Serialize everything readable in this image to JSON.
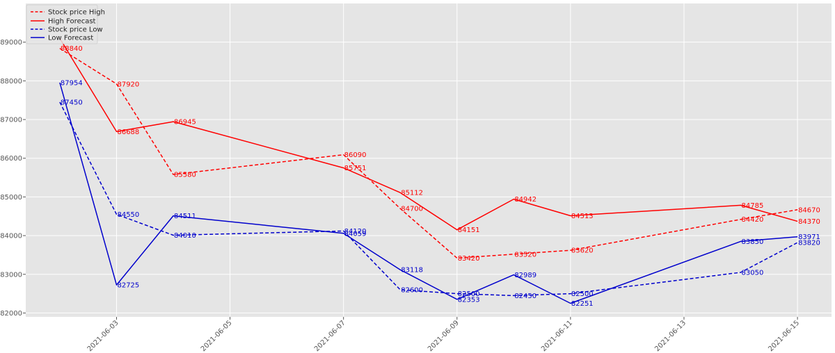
{
  "chart_data": {
    "type": "line",
    "title": "",
    "xlabel": "",
    "ylabel": "",
    "xlim": [
      "2021-06-01T09:36",
      "2021-06-15T14:24"
    ],
    "ylim": [
      81900,
      90000
    ],
    "grid": true,
    "legend_position": "top-left",
    "x_ticks": [
      "2021-06-03",
      "2021-06-05",
      "2021-06-07",
      "2021-06-09",
      "2021-06-11",
      "2021-06-13",
      "2021-06-15"
    ],
    "y_ticks": [
      82000,
      83000,
      84000,
      85000,
      86000,
      87000,
      88000,
      89000
    ],
    "y_tick_labels": [
      "82000",
      "83000",
      "84000",
      "85000",
      "86000",
      "87000",
      "88000",
      "89000"
    ],
    "series": [
      {
        "name": "Stock price High",
        "color": "#ff0000",
        "dash": true,
        "x": [
          "2021-06-02",
          "2021-06-03",
          "2021-06-04",
          "2021-06-07",
          "2021-06-08",
          "2021-06-09",
          "2021-06-10",
          "2021-06-11",
          "2021-06-14",
          "2021-06-15"
        ],
        "values": [
          88840,
          87920,
          85580,
          86090,
          84700,
          83420,
          83520,
          83620,
          84420,
          84670
        ],
        "labels": [
          "88840",
          "87920",
          "85580",
          "86090",
          "84700",
          "83420",
          "83520",
          "83620",
          "84420",
          "84670"
        ]
      },
      {
        "name": "High Forecast",
        "color": "#ff0000",
        "dash": false,
        "x": [
          "2021-06-02",
          "2021-06-03",
          "2021-06-04",
          "2021-06-07",
          "2021-06-08",
          "2021-06-09",
          "2021-06-10",
          "2021-06-11",
          "2021-06-14",
          "2021-06-15"
        ],
        "values": [
          89100,
          86688,
          86945,
          85751,
          85112,
          84151,
          84942,
          84513,
          84785,
          84370
        ],
        "labels": [
          "",
          "86688",
          "86945",
          "85751",
          "85112",
          "84151",
          "84942",
          "84513",
          "84785",
          "84370"
        ]
      },
      {
        "name": "Stock price Low",
        "color": "#0000cc",
        "dash": true,
        "x": [
          "2021-06-02",
          "2021-06-03",
          "2021-06-04",
          "2021-06-07",
          "2021-06-08",
          "2021-06-09",
          "2021-06-10",
          "2021-06-11",
          "2021-06-14",
          "2021-06-15"
        ],
        "values": [
          87450,
          84550,
          84010,
          84120,
          82600,
          82500,
          82450,
          82500,
          83050,
          83820
        ],
        "labels": [
          "87450",
          "84550",
          "84010",
          "84120",
          "82600",
          "82500",
          "82450",
          "82500",
          "83050",
          "83820"
        ]
      },
      {
        "name": "Low Forecast",
        "color": "#0000cc",
        "dash": false,
        "x": [
          "2021-06-02",
          "2021-06-03",
          "2021-06-04",
          "2021-06-07",
          "2021-06-08",
          "2021-06-09",
          "2021-06-10",
          "2021-06-11",
          "2021-06-14",
          "2021-06-15"
        ],
        "values": [
          87954,
          82725,
          84511,
          84059,
          83118,
          82353,
          82989,
          82251,
          83850,
          83971
        ],
        "labels": [
          "87954",
          "82725",
          "84511",
          "84059",
          "83118",
          "82353",
          "82989",
          "82251",
          "83850",
          "83971"
        ]
      }
    ]
  }
}
